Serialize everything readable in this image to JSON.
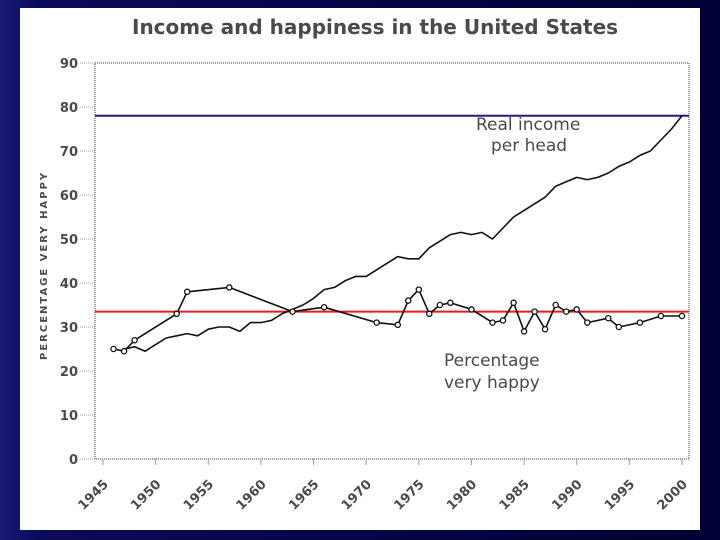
{
  "chart_data": {
    "type": "line",
    "title": "Income and happiness in the United States",
    "ylabel": "PERCENTAGE VERY HAPPY",
    "xlabel": "",
    "ylim": [
      0,
      90
    ],
    "yticks": [
      "0",
      "10",
      "20",
      "30",
      "40",
      "50",
      "60",
      "70",
      "80",
      "90"
    ],
    "xlim": [
      1945,
      2000
    ],
    "xticks": [
      "1945",
      "1950",
      "1955",
      "1960",
      "1965",
      "1970",
      "1975",
      "1980",
      "1985",
      "1990",
      "1995",
      "2000"
    ],
    "series": [
      {
        "name": "Real income per head",
        "label_lines": [
          "Real income",
          "per head"
        ],
        "x": [
          1947,
          1948,
          1949,
          1950,
          1951,
          1952,
          1953,
          1954,
          1955,
          1956,
          1957,
          1958,
          1959,
          1960,
          1961,
          1962,
          1963,
          1964,
          1965,
          1966,
          1967,
          1968,
          1969,
          1970,
          1971,
          1972,
          1973,
          1974,
          1975,
          1976,
          1977,
          1978,
          1979,
          1980,
          1981,
          1982,
          1983,
          1984,
          1985,
          1986,
          1987,
          1988,
          1989,
          1990,
          1991,
          1992,
          1993,
          1994,
          1995,
          1996,
          1997,
          1998,
          1999,
          2000
        ],
        "values": [
          25,
          25.5,
          24.5,
          26,
          27.5,
          28,
          28.5,
          28,
          29.5,
          30,
          30,
          29,
          31,
          31,
          31.5,
          33,
          34,
          35,
          36.5,
          38.5,
          39,
          40.5,
          41.5,
          41.5,
          43,
          44.5,
          46,
          45.5,
          45.5,
          48,
          49.5,
          51,
          51.5,
          51,
          51.5,
          50,
          52.5,
          55,
          56.5,
          58,
          59.5,
          62,
          63,
          64,
          63.5,
          64,
          65,
          66.5,
          67.5,
          69,
          70,
          72.5,
          75,
          78
        ]
      },
      {
        "name": "Percentage very happy",
        "label_lines": [
          "Percentage",
          "very happy"
        ],
        "x": [
          1946,
          1947,
          1948,
          1952,
          1953,
          1957,
          1963,
          1966,
          1971,
          1973,
          1974,
          1975,
          1976,
          1977,
          1978,
          1980,
          1982,
          1983,
          1984,
          1985,
          1986,
          1987,
          1988,
          1989,
          1990,
          1991,
          1993,
          1994,
          1996,
          1998,
          2000
        ],
        "values": [
          25,
          24.5,
          27,
          33,
          38,
          39,
          33.5,
          34.5,
          31,
          30.5,
          36,
          38.5,
          33,
          35,
          35.5,
          34,
          31,
          31.5,
          35.5,
          29,
          33.5,
          29.5,
          35,
          33.5,
          34,
          31,
          32,
          30,
          31,
          32.5,
          32.5
        ]
      }
    ],
    "reference_lines": [
      {
        "name": "income reference line",
        "value": 78,
        "color": "#1c1c8c"
      },
      {
        "name": "happiness reference line",
        "value": 33.5,
        "color": "#e81c1c"
      }
    ]
  }
}
